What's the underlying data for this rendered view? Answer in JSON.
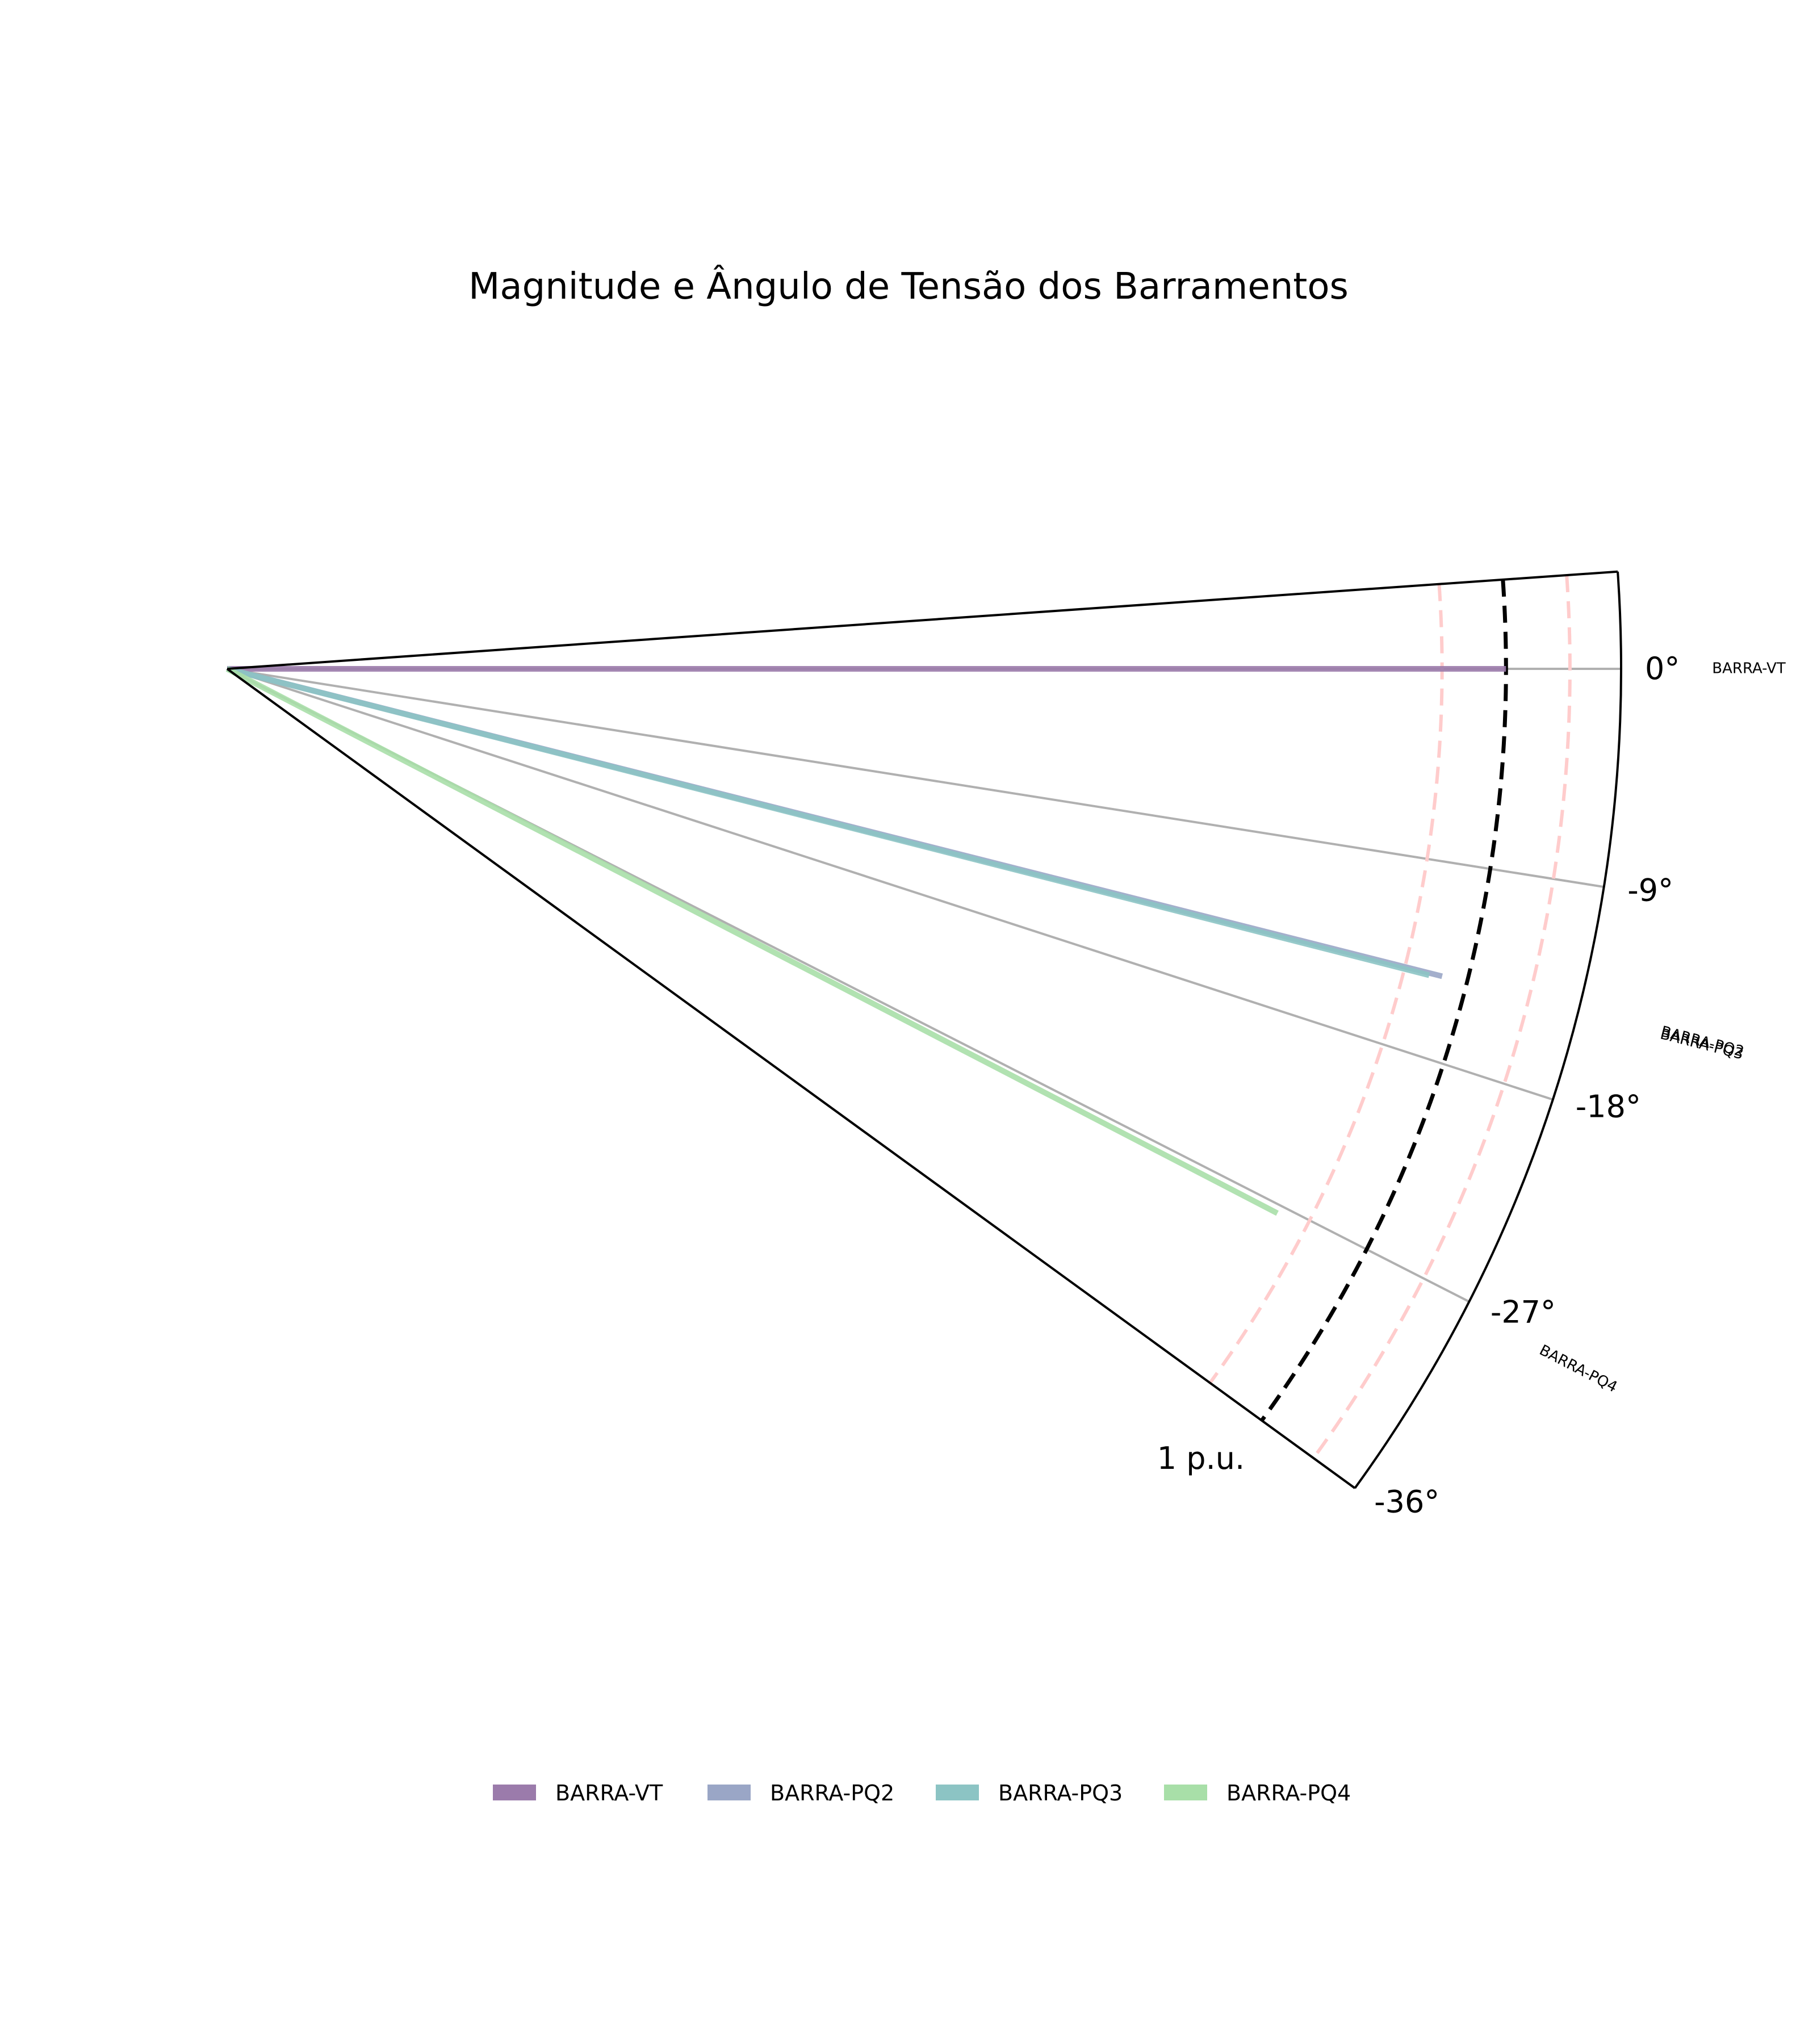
{
  "chart_data": {
    "type": "polar-line",
    "title": "Magnitude e Ângulo de Tensão dos Barramentos",
    "angle_unit": "degrees",
    "theta_range": [
      -36,
      4
    ],
    "r_range": [
      0,
      1.09
    ],
    "theta_ticks": [
      0,
      -9,
      -18,
      -27,
      -36
    ],
    "theta_tick_labels": [
      "0°",
      "-9°",
      "-18°",
      "-27°",
      "-36°"
    ],
    "r_tick": {
      "value": 1.0,
      "label": "1 p.u."
    },
    "reference_circles": [
      {
        "r": 1.0,
        "style": "dashed",
        "color": "#000000"
      },
      {
        "r": 0.95,
        "style": "dashed",
        "color": "#ffcccc"
      },
      {
        "r": 1.05,
        "style": "dashed",
        "color": "#ffcccc"
      }
    ],
    "grid": true,
    "legend_position": "bottom",
    "series": [
      {
        "name": "BARRA-VT",
        "magnitude": 1.0,
        "angle": 0.0,
        "color": "#9b7bab"
      },
      {
        "name": "BARRA-PQ2",
        "magnitude": 0.98,
        "angle": -14.2,
        "color": "#9aa6c6"
      },
      {
        "name": "BARRA-PQ3",
        "magnitude": 0.97,
        "angle": -14.3,
        "color": "#8cc4c4"
      },
      {
        "name": "BARRA-PQ4",
        "magnitude": 0.925,
        "angle": -27.4,
        "color": "#a8dfa8"
      }
    ],
    "outer_labels": [
      {
        "text": "BARRA-VT",
        "angle": 0.0
      },
      {
        "text": "BARRA-PQ2",
        "angle": -14.2
      },
      {
        "text": "BARRA-PQ3",
        "angle": -14.3
      },
      {
        "text": "BARRA-PQ4",
        "angle": -27.4
      }
    ]
  }
}
